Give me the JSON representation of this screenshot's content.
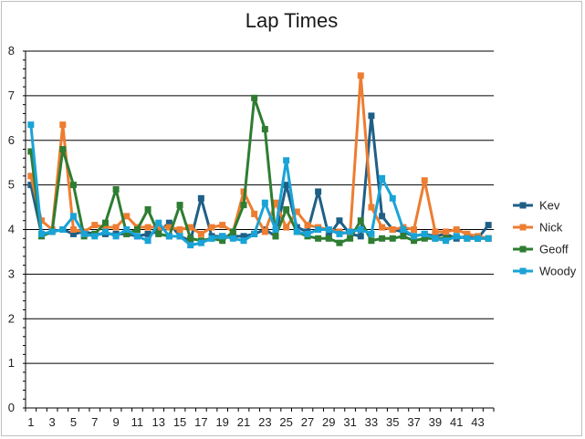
{
  "chart_data": {
    "type": "line",
    "title": "Lap Times",
    "xlabel": "",
    "ylabel": "",
    "ylim": [
      0,
      8
    ],
    "yticks": [
      0,
      1,
      2,
      3,
      4,
      5,
      6,
      7,
      8
    ],
    "xlim": [
      1,
      44
    ],
    "xticks": [
      1,
      3,
      5,
      7,
      9,
      11,
      13,
      15,
      17,
      19,
      21,
      23,
      25,
      27,
      29,
      31,
      33,
      35,
      37,
      39,
      41,
      43
    ],
    "grid": "horizontal",
    "legend_position": "right",
    "x": [
      1,
      2,
      3,
      4,
      5,
      6,
      7,
      8,
      9,
      10,
      11,
      12,
      13,
      14,
      15,
      16,
      17,
      18,
      19,
      20,
      21,
      22,
      23,
      24,
      25,
      26,
      27,
      28,
      29,
      30,
      31,
      32,
      33,
      34,
      35,
      36,
      37,
      38,
      39,
      40,
      41,
      42,
      43,
      44
    ],
    "series": [
      {
        "name": "Kev",
        "color": "#1f5f86",
        "values": [
          5.0,
          3.9,
          3.95,
          4.0,
          3.9,
          3.95,
          3.9,
          3.9,
          3.9,
          3.9,
          3.85,
          3.9,
          3.95,
          4.15,
          3.85,
          3.75,
          4.7,
          3.85,
          3.85,
          3.85,
          3.85,
          3.9,
          4.0,
          3.85,
          5.0,
          4.05,
          3.95,
          4.85,
          3.85,
          4.2,
          3.9,
          3.85,
          6.55,
          4.3,
          4.0,
          3.95,
          3.85,
          3.9,
          3.85,
          3.9,
          3.8,
          3.85,
          3.8,
          4.1
        ]
      },
      {
        "name": "Nick",
        "color": "#ed7d31",
        "values": [
          5.2,
          4.2,
          4.0,
          6.35,
          4.0,
          3.95,
          4.1,
          4.05,
          4.05,
          4.3,
          4.05,
          4.05,
          4.05,
          4.05,
          4.0,
          4.05,
          3.9,
          4.05,
          4.1,
          3.95,
          4.85,
          4.35,
          3.95,
          4.6,
          4.05,
          4.4,
          4.1,
          4.05,
          4.0,
          3.95,
          3.9,
          7.45,
          4.5,
          4.05,
          4.0,
          4.05,
          4.0,
          5.1,
          3.95,
          3.95,
          4.0,
          3.9,
          3.85,
          3.8
        ]
      },
      {
        "name": "Geoff",
        "color": "#2e7d32",
        "values": [
          5.75,
          3.85,
          3.95,
          5.8,
          5.0,
          3.85,
          3.9,
          4.15,
          4.9,
          3.9,
          4.0,
          4.45,
          3.9,
          3.85,
          4.55,
          3.8,
          3.75,
          3.8,
          3.75,
          3.95,
          4.55,
          6.95,
          6.25,
          3.85,
          4.45,
          3.95,
          3.85,
          3.8,
          3.8,
          3.7,
          3.8,
          4.2,
          3.75,
          3.8,
          3.8,
          3.85,
          3.75,
          3.8,
          3.8,
          3.8,
          3.85,
          3.8,
          3.8,
          3.8
        ]
      },
      {
        "name": "Woody",
        "color": "#1aa3d6",
        "values": [
          6.35,
          3.9,
          3.95,
          4.0,
          4.3,
          3.9,
          3.85,
          3.95,
          3.85,
          4.0,
          3.85,
          3.75,
          4.15,
          3.85,
          3.85,
          3.65,
          3.7,
          3.8,
          3.85,
          3.8,
          3.75,
          3.9,
          4.6,
          4.0,
          5.55,
          3.95,
          3.9,
          4.0,
          4.0,
          3.9,
          3.95,
          4.0,
          3.9,
          5.15,
          4.7,
          4.0,
          3.85,
          3.9,
          3.8,
          3.75,
          3.85,
          3.8,
          3.8,
          3.8
        ]
      }
    ]
  }
}
